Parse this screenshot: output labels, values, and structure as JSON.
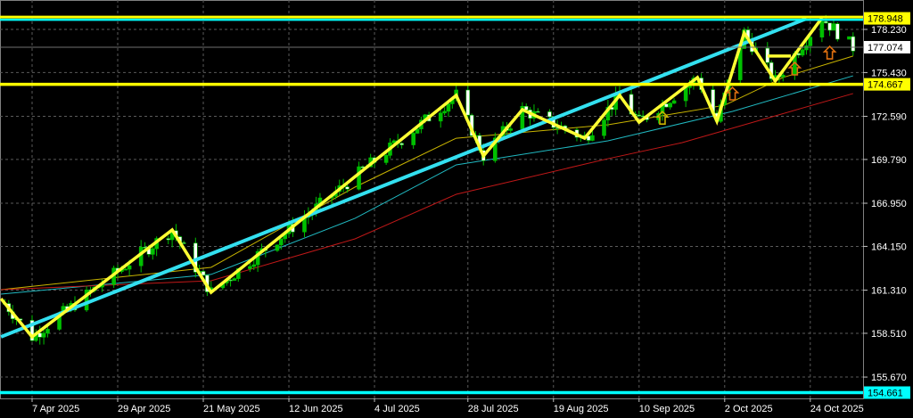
{
  "chart_data": {
    "type": "candlestick",
    "title": "",
    "xlabel": "",
    "ylabel": "",
    "ylim": [
      154.2,
      179.5
    ],
    "grid": true,
    "background": "#000000",
    "y_ticks": [
      "178.230",
      "175.430",
      "172.590",
      "169.790",
      "166.950",
      "164.150",
      "161.310",
      "158.510",
      "155.670"
    ],
    "x_ticks": [
      {
        "date": "2025-04-07",
        "label": "7 Apr 2025"
      },
      {
        "date": "2025-04-29",
        "label": "29 Apr 2025"
      },
      {
        "date": "2025-05-21",
        "label": "21 May 2025"
      },
      {
        "date": "2025-06-12",
        "label": "12 Jun 2025"
      },
      {
        "date": "2025-07-04",
        "label": "4 Jul 2025"
      },
      {
        "date": "2025-07-28",
        "label": "28 Jul 2025"
      },
      {
        "date": "2025-08-19",
        "label": "19 Aug 2025"
      },
      {
        "date": "2025-09-10",
        "label": "10 Sep 2025"
      },
      {
        "date": "2025-10-02",
        "label": "2 Oct 2025"
      },
      {
        "date": "2025-10-24",
        "label": "24 Oct 2025"
      }
    ],
    "date_range": [
      "2025-03-31",
      "2025-11-04"
    ],
    "last_price": {
      "value": 177.074,
      "label": "177.074",
      "color": "#ffffff"
    },
    "horizontal_levels": [
      {
        "value": 178.948,
        "label": "178.948",
        "color": "#ffff00",
        "color2": "#00ffff"
      },
      {
        "value": 174.667,
        "label": "174.667",
        "color": "#ffff00"
      },
      {
        "value": 154.661,
        "label": "154.661",
        "color": "#00ffff"
      }
    ],
    "trendline": {
      "color": "#33e0f0",
      "points": [
        [
          "2025-03-30",
          158.28
        ],
        [
          "2025-10-23",
          178.93
        ]
      ]
    },
    "zigzag": {
      "color": "#ffff33",
      "points": [
        [
          "2025-03-30",
          160.76
        ],
        [
          "2025-04-07",
          158.28
        ],
        [
          "2025-05-13",
          165.22
        ],
        [
          "2025-05-23",
          161.17
        ],
        [
          "2025-07-25",
          173.95
        ],
        [
          "2025-08-01",
          170.02
        ],
        [
          "2025-08-11",
          173.02
        ],
        [
          "2025-08-27",
          171.17
        ],
        [
          "2025-09-05",
          173.95
        ],
        [
          "2025-09-10",
          172.21
        ],
        [
          "2025-09-25",
          175.11
        ],
        [
          "2025-09-30",
          172.27
        ],
        [
          "2025-10-07",
          178.0
        ],
        [
          "2025-10-15",
          174.88
        ],
        [
          "2025-10-27",
          178.98
        ]
      ]
    },
    "resistance_segment": {
      "color": "#ffff33",
      "value": 176.5,
      "from": "2025-10-13",
      "to": "2025-10-19"
    },
    "moving_averages": [
      {
        "color": "#c8b400",
        "points": [
          [
            "2025-03-30",
            161.34
          ],
          [
            "2025-05-23",
            162.79
          ],
          [
            "2025-06-29",
            168.0
          ],
          [
            "2025-07-25",
            171.17
          ],
          [
            "2025-09-02",
            172.04
          ],
          [
            "2025-10-02",
            173.31
          ],
          [
            "2025-10-17",
            175.11
          ],
          [
            "2025-11-04",
            176.5
          ]
        ]
      },
      {
        "color": "#20b8c0",
        "points": [
          [
            "2025-03-30",
            161.05
          ],
          [
            "2025-05-23",
            162.33
          ],
          [
            "2025-06-29",
            165.97
          ],
          [
            "2025-07-25",
            169.44
          ],
          [
            "2025-09-02",
            171.0
          ],
          [
            "2025-10-04",
            172.91
          ],
          [
            "2025-11-04",
            175.22
          ]
        ]
      },
      {
        "color": "#c01818",
        "points": [
          [
            "2025-03-30",
            161.34
          ],
          [
            "2025-05-23",
            161.92
          ],
          [
            "2025-06-29",
            164.64
          ],
          [
            "2025-07-25",
            167.53
          ],
          [
            "2025-09-02",
            169.84
          ],
          [
            "2025-09-21",
            170.88
          ],
          [
            "2025-11-04",
            174.07
          ]
        ]
      }
    ],
    "signal_arrows": [
      {
        "type": "up-arrow",
        "date": "2025-09-16",
        "price": 172.9,
        "color": "#c8b400"
      },
      {
        "type": "up-arrow",
        "date": "2025-10-04",
        "price": 174.47,
        "color": "#e07010"
      },
      {
        "type": "up-arrow",
        "date": "2025-10-20",
        "price": 176.09,
        "color": "#e07010"
      },
      {
        "type": "up-arrow",
        "date": "2025-10-29",
        "price": 177.13,
        "color": "#e07010"
      }
    ],
    "candle_colors": {
      "up": "#00c000",
      "down": "#ffffff"
    }
  }
}
